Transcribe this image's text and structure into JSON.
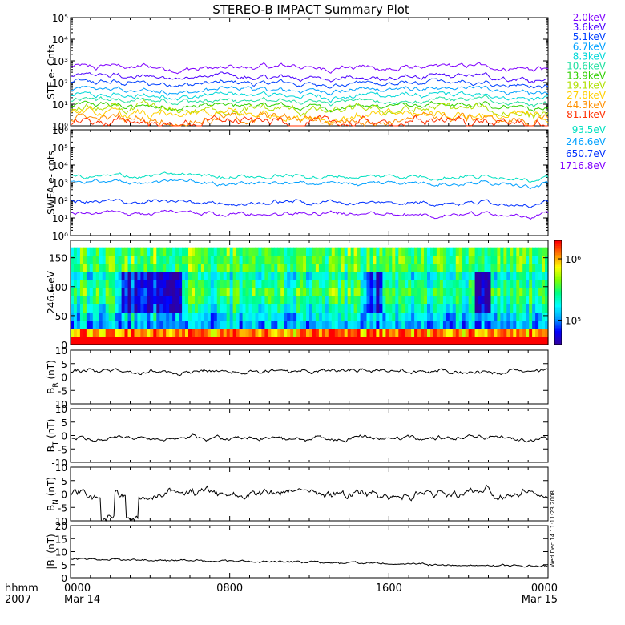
{
  "title": "STEREO-B IMPACT Summary Plot",
  "footer": {
    "hhmm": "hhmm",
    "year": "2007",
    "side_stamp": "Wed Dec 14 11:11:23 2008"
  },
  "x_axis": {
    "range_hours": [
      0,
      24
    ],
    "ticks": [
      {
        "hour": 0,
        "label": "0000",
        "sublabel": "Mar 14"
      },
      {
        "hour": 8,
        "label": "0800",
        "sublabel": ""
      },
      {
        "hour": 16,
        "label": "1600",
        "sublabel": ""
      },
      {
        "hour": 24,
        "label": "0000",
        "sublabel": "Mar 15"
      }
    ]
  },
  "colors": {
    "ste": [
      "#8000ff",
      "#4b00ff",
      "#0040ff",
      "#00a0ff",
      "#00d8d8",
      "#20e0a0",
      "#30d000",
      "#b0e000",
      "#ffd000",
      "#ff9000",
      "#ff3000"
    ],
    "swea": [
      "#8000ff",
      "#0030ff",
      "#00a0ff",
      "#00e0c0"
    ],
    "colorbar": [
      "#3000a0",
      "#0000ff",
      "#00a0ff",
      "#00ffff",
      "#00ff80",
      "#80ff00",
      "#ffff00",
      "#ff8000",
      "#ff0000"
    ]
  },
  "chart_data": [
    {
      "type": "line",
      "panel": "ste",
      "ylabel": "STE e- Cnts",
      "yscale": "log",
      "ylim": [
        1,
        100000
      ],
      "y_ticks": [
        "10⁰",
        "10¹",
        "10²",
        "10³",
        "10⁴",
        "10⁵"
      ],
      "series": [
        {
          "name": "2.0keV",
          "level": 500
        },
        {
          "name": "3.6keV",
          "level": 180
        },
        {
          "name": "5.1keV",
          "level": 90
        },
        {
          "name": "6.7keV",
          "level": 45
        },
        {
          "name": "8.3keV",
          "level": 25
        },
        {
          "name": "10.6keV",
          "level": 14
        },
        {
          "name": "13.9keV",
          "level": 8
        },
        {
          "name": "19.1keV",
          "level": 5
        },
        {
          "name": "27.8keV",
          "level": 3
        },
        {
          "name": "44.3keV",
          "level": 2
        },
        {
          "name": "81.1keV",
          "level": 1.4
        }
      ]
    },
    {
      "type": "line",
      "panel": "swea",
      "ylabel": "SWEA e- cnts",
      "yscale": "log",
      "ylim": [
        1,
        1000000
      ],
      "y_ticks": [
        "10⁰",
        "10¹",
        "10²",
        "10³",
        "10⁴",
        "10⁵",
        "10⁶"
      ],
      "series": [
        {
          "name": "1716.8eV",
          "level": 18
        },
        {
          "name": "650.7eV",
          "level": 80
        },
        {
          "name": "246.6eV",
          "level": 1000
        },
        {
          "name": "93.5eV",
          "level": 2300
        }
      ]
    },
    {
      "type": "heatmap",
      "panel": "pad",
      "ylabel": "246.6 eV",
      "ylim": [
        0,
        180
      ],
      "y_ticks": [
        0,
        50,
        100,
        150
      ],
      "colorbar_ticks": [
        {
          "label": "10⁵",
          "value": 100000
        },
        {
          "label": "10⁶",
          "value": 1000000
        }
      ],
      "colorbar_range": [
        40000,
        2000000
      ]
    },
    {
      "type": "line",
      "panel": "br",
      "ylabel_main": "B",
      "ylabel_sub": "R",
      "ylabel_unit": " (nT)",
      "ylim": [
        -10,
        10
      ],
      "y_ticks": [
        -10,
        -5,
        0,
        5,
        10
      ],
      "base": 2,
      "amp": 2.5
    },
    {
      "type": "line",
      "panel": "bt",
      "ylabel_main": "B",
      "ylabel_sub": "T",
      "ylabel_unit": " (nT)",
      "ylim": [
        -10,
        10
      ],
      "y_ticks": [
        -10,
        -5,
        0,
        5,
        10
      ],
      "base": -1,
      "amp": 2.5
    },
    {
      "type": "line",
      "panel": "bn",
      "ylabel_main": "B",
      "ylabel_sub": "N",
      "ylabel_unit": " (nT)",
      "ylim": [
        -10,
        10
      ],
      "y_ticks": [
        -10,
        -5,
        0,
        5,
        10
      ],
      "base": 0,
      "amp": 5
    },
    {
      "type": "line",
      "panel": "bmag",
      "ylabel": "|B| (nT)",
      "ylim": [
        0,
        20
      ],
      "y_ticks": [
        0,
        5,
        10,
        15,
        20
      ],
      "base": 5,
      "amp": 1.2
    }
  ]
}
